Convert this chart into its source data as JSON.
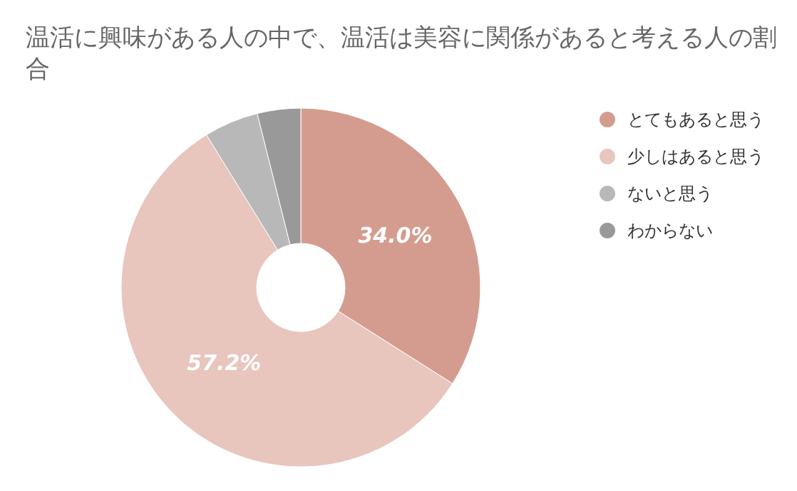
{
  "chart_data": {
    "type": "donut",
    "title": "温活に興味がある人の中で、温活は美容に関係があると考える人の割合",
    "categories": [
      "とてもあると思う",
      "少しはあると思う",
      "ないと思う",
      "わからない"
    ],
    "values": [
      34.0,
      57.2,
      4.9,
      3.9
    ],
    "colors": [
      "#d49c8f",
      "#e8c5bd",
      "#b8b8b8",
      "#999999"
    ],
    "value_labels": [
      "34.0%",
      "57.2%",
      null,
      null
    ],
    "legend": "right"
  }
}
